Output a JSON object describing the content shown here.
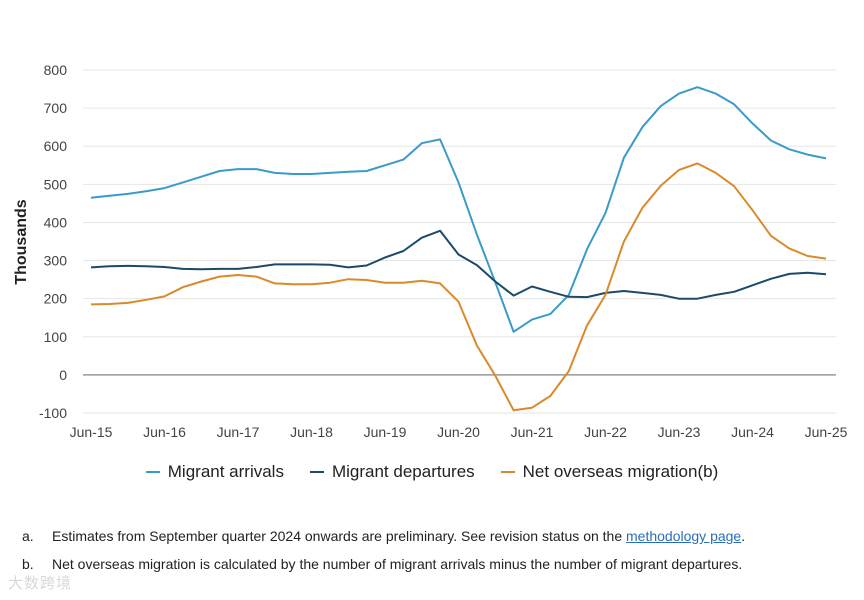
{
  "chart_data": {
    "type": "line",
    "title": "",
    "ylabel": "Thousands",
    "xlabel": "",
    "ylim": [
      -100,
      800
    ],
    "yticks": [
      -100,
      0,
      100,
      200,
      300,
      400,
      500,
      600,
      700,
      800
    ],
    "ytick_labels": [
      "-100",
      "0",
      "100",
      "200",
      "300",
      "400",
      "500",
      "600",
      "700",
      "800"
    ],
    "xtick_labels": [
      "Jun-15",
      "Jun-16",
      "Jun-17",
      "Jun-18",
      "Jun-19",
      "Jun-20",
      "Jun-21",
      "Jun-22",
      "Jun-23",
      "Jun-24",
      "Jun-25"
    ],
    "grid": true,
    "legend_position": "bottom",
    "x": [
      "Jun-15",
      "Sep-15",
      "Dec-15",
      "Mar-16",
      "Jun-16",
      "Sep-16",
      "Dec-16",
      "Mar-17",
      "Jun-17",
      "Sep-17",
      "Dec-17",
      "Mar-18",
      "Jun-18",
      "Sep-18",
      "Dec-18",
      "Mar-19",
      "Jun-19",
      "Sep-19",
      "Dec-19",
      "Mar-20",
      "Jun-20",
      "Sep-20",
      "Dec-20",
      "Mar-21",
      "Jun-21",
      "Sep-21",
      "Dec-21",
      "Mar-22",
      "Jun-22",
      "Sep-22",
      "Dec-22",
      "Mar-23",
      "Jun-23",
      "Sep-23",
      "Dec-23",
      "Mar-24",
      "Jun-24",
      "Sep-24",
      "Dec-24",
      "Mar-25",
      "Jun-25"
    ],
    "series": [
      {
        "name": "Migrant arrivals",
        "color": "#3a9bc8",
        "values": [
          465,
          470,
          475,
          482,
          490,
          505,
          520,
          535,
          540,
          540,
          530,
          527,
          527,
          530,
          533,
          535,
          550,
          565,
          608,
          618,
          505,
          368,
          243,
          113,
          145,
          160,
          210,
          330,
          425,
          570,
          650,
          705,
          738,
          755,
          738,
          710,
          660,
          615,
          592,
          578,
          568
        ]
      },
      {
        "name": "Migrant departures",
        "color": "#1b4a6b",
        "values": [
          282,
          285,
          286,
          285,
          283,
          278,
          277,
          278,
          278,
          283,
          290,
          290,
          290,
          289,
          282,
          287,
          308,
          325,
          360,
          378,
          316,
          288,
          245,
          208,
          232,
          218,
          205,
          204,
          215,
          220,
          215,
          210,
          200,
          200,
          210,
          218,
          235,
          252,
          265,
          268,
          264
        ]
      },
      {
        "name": "Net overseas migration(b)",
        "color": "#d98a2b",
        "values": [
          185,
          186,
          189,
          197,
          206,
          230,
          245,
          258,
          262,
          258,
          240,
          238,
          238,
          242,
          251,
          249,
          242,
          242,
          247,
          240,
          192,
          77,
          -2,
          -93,
          -86,
          -55,
          10,
          130,
          210,
          350,
          438,
          496,
          538,
          555,
          530,
          495,
          432,
          365,
          332,
          312,
          305
        ]
      }
    ]
  },
  "notes": [
    {
      "letter": "a.",
      "text_before": "Estimates from September quarter 2024 onwards are preliminary. See revision status on the ",
      "link": "methodology page",
      "text_after": "."
    },
    {
      "letter": "b.",
      "text_before": "Net overseas migration is calculated by the number of migrant arrivals minus the number of migrant departures.",
      "link": "",
      "text_after": ""
    }
  ],
  "watermark": "大数跨境"
}
